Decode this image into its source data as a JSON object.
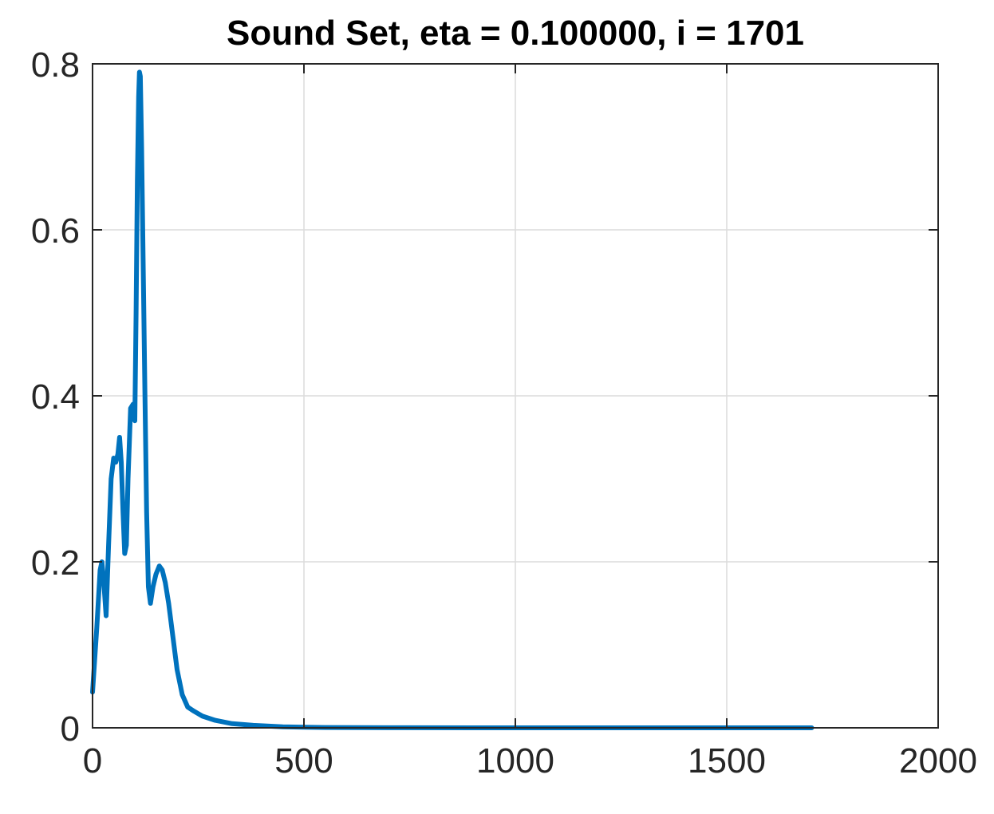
{
  "chart_data": {
    "type": "line",
    "title": "Sound Set, eta = 0.100000, i = 1701",
    "xlabel": "",
    "ylabel": "",
    "xlim": [
      0,
      2000
    ],
    "ylim": [
      0,
      0.8
    ],
    "grid": true,
    "x_ticks": [
      0,
      500,
      1000,
      1500,
      2000
    ],
    "y_ticks": [
      0,
      0.2,
      0.4,
      0.6,
      0.8
    ],
    "x_tick_labels": [
      "0",
      "500",
      "1000",
      "1500",
      "2000"
    ],
    "y_tick_labels": [
      "0",
      "0.2",
      "0.4",
      "0.6",
      "0.8"
    ],
    "series": [
      {
        "color": "#0072bd",
        "x": [
          0,
          10,
          18,
          22,
          26,
          32,
          38,
          44,
          50,
          55,
          60,
          64,
          68,
          72,
          76,
          80,
          84,
          90,
          96,
          100,
          103,
          106,
          109,
          111,
          113,
          116,
          120,
          124,
          128,
          132,
          137,
          143,
          150,
          158,
          165,
          172,
          180,
          190,
          200,
          212,
          225,
          240,
          260,
          290,
          330,
          380,
          450,
          550,
          700,
          900,
          1200,
          1500,
          1701
        ],
        "y": [
          0.043,
          0.12,
          0.19,
          0.2,
          0.18,
          0.135,
          0.22,
          0.3,
          0.325,
          0.32,
          0.33,
          0.35,
          0.32,
          0.26,
          0.21,
          0.22,
          0.3,
          0.385,
          0.39,
          0.37,
          0.5,
          0.66,
          0.76,
          0.79,
          0.785,
          0.7,
          0.55,
          0.4,
          0.26,
          0.17,
          0.15,
          0.17,
          0.185,
          0.195,
          0.19,
          0.175,
          0.15,
          0.11,
          0.07,
          0.04,
          0.025,
          0.02,
          0.014,
          0.009,
          0.005,
          0.003,
          0.0012,
          0.0004,
          0.0001,
          3e-05,
          1e-05,
          5e-06,
          3e-06
        ]
      }
    ]
  }
}
